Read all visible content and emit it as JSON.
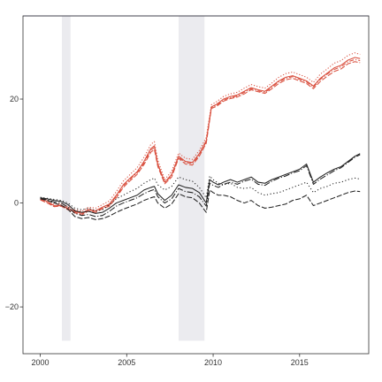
{
  "chart_data": {
    "type": "line",
    "xlim": [
      1999.0,
      2019.0
    ],
    "ylim": [
      -29.0,
      36.0
    ],
    "x_ticks": [
      {
        "value": 2000,
        "label": "2000"
      },
      {
        "value": 2005,
        "label": "2005"
      },
      {
        "value": 2010,
        "label": "2010"
      },
      {
        "value": 2015,
        "label": "2015"
      }
    ],
    "y_ticks": [
      {
        "value": -20,
        "label": "−20"
      },
      {
        "value": 0,
        "label": "0"
      },
      {
        "value": 20,
        "label": "20"
      }
    ],
    "shaded_periods": [
      {
        "start": 2001.25,
        "end": 2001.75
      },
      {
        "start": 2008.0,
        "end": 2009.5
      }
    ],
    "shaded_y_range": [
      -26.5,
      36.0
    ],
    "reference_line": {
      "y": 36.0,
      "color": "#7c7cb4"
    },
    "grid": false,
    "colors": {
      "red": "#d9503f",
      "black": "#222222",
      "shade": "#ebebef"
    },
    "series": [
      {
        "group": "red",
        "color": "#d9503f",
        "dash": "",
        "x": [
          2000.0,
          2000.4,
          2000.8,
          2001.2,
          2001.6,
          2002.0,
          2002.4,
          2002.8,
          2003.2,
          2003.6,
          2004.0,
          2004.4,
          2004.8,
          2005.2,
          2005.6,
          2006.0,
          2006.4,
          2006.6,
          2006.8,
          2007.2,
          2007.6,
          2008.0,
          2008.4,
          2008.8,
          2009.2,
          2009.6,
          2009.9,
          2010.2,
          2010.6,
          2011.0,
          2011.4,
          2011.8,
          2012.2,
          2012.6,
          2013.0,
          2013.4,
          2013.8,
          2014.2,
          2014.6,
          2015.0,
          2015.4,
          2015.8,
          2016.2,
          2016.6,
          2017.0,
          2017.4,
          2017.8,
          2018.2,
          2018.5
        ],
        "y": [
          0.8,
          0.3,
          -0.5,
          -0.4,
          -1.0,
          -1.6,
          -2.0,
          -1.2,
          -1.5,
          -0.8,
          -0.2,
          1.5,
          3.5,
          4.8,
          6.0,
          8.0,
          10.5,
          11.0,
          7.5,
          4.0,
          5.5,
          9.0,
          8.0,
          7.8,
          9.5,
          12.0,
          18.5,
          19.0,
          20.0,
          20.5,
          20.8,
          21.5,
          22.2,
          21.8,
          21.5,
          22.5,
          23.5,
          24.2,
          24.5,
          24.0,
          23.5,
          22.5,
          24.0,
          25.0,
          26.0,
          26.5,
          27.5,
          28.0,
          27.8
        ]
      },
      {
        "group": "red",
        "color": "#d9503f",
        "dash": "6,2",
        "x": [
          2000.0,
          2000.4,
          2000.8,
          2001.2,
          2001.6,
          2002.0,
          2002.4,
          2002.8,
          2003.2,
          2003.6,
          2004.0,
          2004.4,
          2004.8,
          2005.2,
          2005.6,
          2006.0,
          2006.4,
          2006.6,
          2006.8,
          2007.2,
          2007.6,
          2008.0,
          2008.4,
          2008.8,
          2009.2,
          2009.6,
          2009.9,
          2010.2,
          2010.6,
          2011.0,
          2011.4,
          2011.8,
          2012.2,
          2012.6,
          2013.0,
          2013.4,
          2013.8,
          2014.2,
          2014.6,
          2015.0,
          2015.4,
          2015.8,
          2016.2,
          2016.6,
          2017.0,
          2017.4,
          2017.8,
          2018.2,
          2018.5
        ],
        "y": [
          0.6,
          0.0,
          -0.7,
          -0.6,
          -1.3,
          -1.9,
          -2.3,
          -1.5,
          -1.8,
          -1.1,
          -0.6,
          1.0,
          3.0,
          4.3,
          5.5,
          7.4,
          9.8,
          10.3,
          7.0,
          3.7,
          5.0,
          8.6,
          7.5,
          7.3,
          9.0,
          11.5,
          18.2,
          18.6,
          19.6,
          20.1,
          20.4,
          21.0,
          21.8,
          21.4,
          21.1,
          22.0,
          23.0,
          23.7,
          24.0,
          23.5,
          23.0,
          22.0,
          23.4,
          24.4,
          25.3,
          25.8,
          26.8,
          27.2,
          27.0
        ]
      },
      {
        "group": "red",
        "color": "#d9503f",
        "dash": "1.2,2",
        "x": [
          2000.0,
          2000.4,
          2000.8,
          2001.2,
          2001.6,
          2002.0,
          2002.4,
          2002.8,
          2003.2,
          2003.6,
          2004.0,
          2004.4,
          2004.8,
          2005.2,
          2005.6,
          2006.0,
          2006.4,
          2006.6,
          2006.8,
          2007.2,
          2007.6,
          2008.0,
          2008.4,
          2008.8,
          2009.2,
          2009.6,
          2009.9,
          2010.2,
          2010.6,
          2011.0,
          2011.4,
          2011.8,
          2012.2,
          2012.6,
          2013.0,
          2013.4,
          2013.8,
          2014.2,
          2014.6,
          2015.0,
          2015.4,
          2015.8,
          2016.2,
          2016.6,
          2017.0,
          2017.4,
          2017.8,
          2018.2,
          2018.5
        ],
        "y": [
          1.0,
          0.6,
          -0.2,
          -0.1,
          -0.7,
          -1.3,
          -1.6,
          -0.8,
          -1.0,
          -0.3,
          0.4,
          2.2,
          4.2,
          5.5,
          6.8,
          8.8,
          11.3,
          11.8,
          8.2,
          4.5,
          6.1,
          9.6,
          8.6,
          8.4,
          10.1,
          12.6,
          18.9,
          19.5,
          20.5,
          21.0,
          21.3,
          22.1,
          22.8,
          22.4,
          22.1,
          23.1,
          24.2,
          24.9,
          25.2,
          24.7,
          24.2,
          23.2,
          24.8,
          25.8,
          26.9,
          27.4,
          28.4,
          28.9,
          28.6
        ]
      },
      {
        "group": "red",
        "color": "#d9503f",
        "dash": "5,2,1.2,2",
        "x": [
          2000.0,
          2000.4,
          2000.8,
          2001.2,
          2001.6,
          2002.0,
          2002.4,
          2002.8,
          2003.2,
          2003.6,
          2004.0,
          2004.4,
          2004.8,
          2005.2,
          2005.6,
          2006.0,
          2006.4,
          2006.6,
          2006.8,
          2007.2,
          2007.6,
          2008.0,
          2008.4,
          2008.8,
          2009.2,
          2009.6,
          2009.9,
          2010.2,
          2010.6,
          2011.0,
          2011.4,
          2011.8,
          2012.2,
          2012.6,
          2013.0,
          2013.4,
          2013.8,
          2014.2,
          2014.6,
          2015.0,
          2015.4,
          2015.8,
          2016.2,
          2016.6,
          2017.0,
          2017.4,
          2017.8,
          2018.2,
          2018.5
        ],
        "y": [
          0.7,
          0.2,
          -0.6,
          -0.5,
          -1.1,
          -1.7,
          -2.1,
          -1.3,
          -1.6,
          -0.9,
          -0.4,
          1.3,
          3.3,
          4.6,
          5.8,
          7.7,
          10.2,
          10.7,
          7.3,
          3.9,
          5.3,
          8.8,
          7.8,
          7.6,
          9.3,
          11.8,
          18.4,
          18.8,
          19.8,
          20.3,
          20.6,
          21.3,
          22.0,
          21.6,
          21.3,
          22.3,
          23.3,
          24.0,
          24.3,
          23.8,
          23.3,
          22.3,
          23.8,
          24.8,
          25.7,
          26.2,
          27.2,
          27.6,
          27.4
        ]
      },
      {
        "group": "black",
        "color": "#222222",
        "dash": "",
        "x": [
          2000.0,
          2000.4,
          2000.8,
          2001.2,
          2001.6,
          2002.0,
          2002.4,
          2002.8,
          2003.2,
          2003.6,
          2004.0,
          2004.4,
          2004.8,
          2005.2,
          2005.6,
          2006.0,
          2006.4,
          2006.6,
          2006.8,
          2007.2,
          2007.6,
          2008.0,
          2008.4,
          2008.8,
          2009.2,
          2009.6,
          2009.8,
          2010.0,
          2010.3,
          2010.6,
          2011.0,
          2011.4,
          2011.8,
          2012.2,
          2012.6,
          2013.0,
          2013.4,
          2013.8,
          2014.2,
          2014.6,
          2015.0,
          2015.4,
          2015.8,
          2016.2,
          2016.6,
          2017.0,
          2017.4,
          2017.8,
          2018.2,
          2018.5
        ],
        "y": [
          1.0,
          0.8,
          0.5,
          0.3,
          -0.3,
          -1.5,
          -1.8,
          -1.6,
          -2.0,
          -1.8,
          -1.0,
          0.0,
          0.5,
          1.0,
          1.5,
          2.5,
          3.0,
          3.2,
          1.8,
          0.5,
          1.5,
          3.5,
          3.0,
          2.8,
          2.0,
          0.0,
          4.5,
          4.0,
          3.5,
          4.0,
          4.5,
          4.0,
          4.5,
          5.0,
          4.0,
          3.8,
          4.5,
          5.0,
          5.5,
          6.0,
          6.5,
          7.5,
          4.0,
          5.0,
          5.8,
          6.5,
          7.0,
          8.0,
          9.0,
          9.5
        ]
      },
      {
        "group": "black",
        "color": "#222222",
        "dash": "6,2",
        "x": [
          2000.0,
          2000.4,
          2000.8,
          2001.2,
          2001.6,
          2002.0,
          2002.4,
          2002.8,
          2003.2,
          2003.6,
          2004.0,
          2004.4,
          2004.8,
          2005.2,
          2005.6,
          2006.0,
          2006.4,
          2006.6,
          2006.8,
          2007.2,
          2007.6,
          2008.0,
          2008.4,
          2008.8,
          2009.2,
          2009.6,
          2009.8,
          2010.0,
          2010.3,
          2010.6,
          2011.0,
          2011.4,
          2011.8,
          2012.2,
          2012.6,
          2013.0,
          2013.4,
          2013.8,
          2014.2,
          2014.6,
          2015.0,
          2015.4,
          2015.8,
          2016.2,
          2016.6,
          2017.0,
          2017.4,
          2017.8,
          2018.2,
          2018.5
        ],
        "y": [
          0.8,
          0.5,
          0.0,
          -0.4,
          -1.2,
          -2.6,
          -3.0,
          -2.8,
          -3.2,
          -3.0,
          -2.5,
          -1.8,
          -1.2,
          -0.7,
          -0.2,
          0.5,
          1.0,
          1.2,
          0.0,
          -1.0,
          -0.2,
          1.8,
          1.2,
          1.0,
          0.0,
          -1.8,
          2.5,
          2.0,
          1.5,
          1.5,
          1.2,
          0.5,
          0.0,
          0.5,
          -0.5,
          -1.0,
          -0.8,
          -0.5,
          -0.2,
          0.5,
          0.8,
          1.5,
          -0.5,
          0.0,
          0.5,
          1.0,
          1.5,
          2.0,
          2.3,
          2.2
        ]
      },
      {
        "group": "black",
        "color": "#222222",
        "dash": "1.2,2.5",
        "x": [
          2000.0,
          2000.4,
          2000.8,
          2001.2,
          2001.6,
          2002.0,
          2002.4,
          2002.8,
          2003.2,
          2003.6,
          2004.0,
          2004.4,
          2004.8,
          2005.2,
          2005.6,
          2006.0,
          2006.4,
          2006.6,
          2006.8,
          2007.2,
          2007.6,
          2008.0,
          2008.4,
          2008.8,
          2009.2,
          2009.6,
          2009.8,
          2010.0,
          2010.3,
          2010.6,
          2011.0,
          2011.4,
          2011.8,
          2012.2,
          2012.6,
          2013.0,
          2013.4,
          2013.8,
          2014.2,
          2014.6,
          2015.0,
          2015.4,
          2015.8,
          2016.2,
          2016.6,
          2017.0,
          2017.4,
          2017.8,
          2018.2,
          2018.5
        ],
        "y": [
          1.1,
          0.9,
          0.7,
          0.5,
          0.0,
          -1.0,
          -1.3,
          -1.0,
          -1.5,
          -1.3,
          -0.3,
          0.8,
          1.5,
          2.2,
          2.8,
          3.8,
          4.5,
          4.8,
          3.5,
          2.5,
          3.2,
          5.0,
          4.5,
          4.2,
          3.0,
          1.0,
          5.2,
          4.5,
          3.8,
          3.5,
          3.8,
          3.0,
          2.8,
          3.0,
          2.0,
          1.5,
          1.8,
          2.0,
          2.5,
          3.0,
          3.5,
          4.0,
          2.0,
          2.8,
          3.2,
          3.8,
          4.0,
          4.5,
          4.8,
          4.6
        ]
      },
      {
        "group": "black",
        "color": "#222222",
        "dash": "7,2,1.2,2",
        "x": [
          2000.0,
          2000.4,
          2000.8,
          2001.2,
          2001.6,
          2002.0,
          2002.4,
          2002.8,
          2003.2,
          2003.6,
          2004.0,
          2004.4,
          2004.8,
          2005.2,
          2005.6,
          2006.0,
          2006.4,
          2006.6,
          2006.8,
          2007.2,
          2007.6,
          2008.0,
          2008.4,
          2008.8,
          2009.2,
          2009.6,
          2009.8,
          2010.0,
          2010.3,
          2010.6,
          2011.0,
          2011.4,
          2011.8,
          2012.2,
          2012.6,
          2013.0,
          2013.4,
          2013.8,
          2014.2,
          2014.6,
          2015.0,
          2015.4,
          2015.8,
          2016.2,
          2016.6,
          2017.0,
          2017.4,
          2017.8,
          2018.2,
          2018.5
        ],
        "y": [
          0.9,
          0.6,
          0.2,
          0.0,
          -0.8,
          -2.0,
          -2.4,
          -2.2,
          -2.6,
          -2.4,
          -1.6,
          -0.6,
          0.0,
          0.5,
          1.0,
          1.8,
          2.4,
          2.6,
          1.2,
          0.0,
          0.8,
          2.8,
          2.2,
          2.0,
          1.2,
          -0.6,
          3.8,
          3.4,
          3.0,
          3.6,
          4.0,
          3.6,
          4.2,
          4.6,
          3.6,
          3.4,
          4.2,
          4.8,
          5.2,
          5.8,
          6.2,
          7.2,
          3.6,
          4.6,
          5.4,
          6.2,
          6.8,
          7.8,
          8.8,
          9.3
        ]
      }
    ]
  }
}
